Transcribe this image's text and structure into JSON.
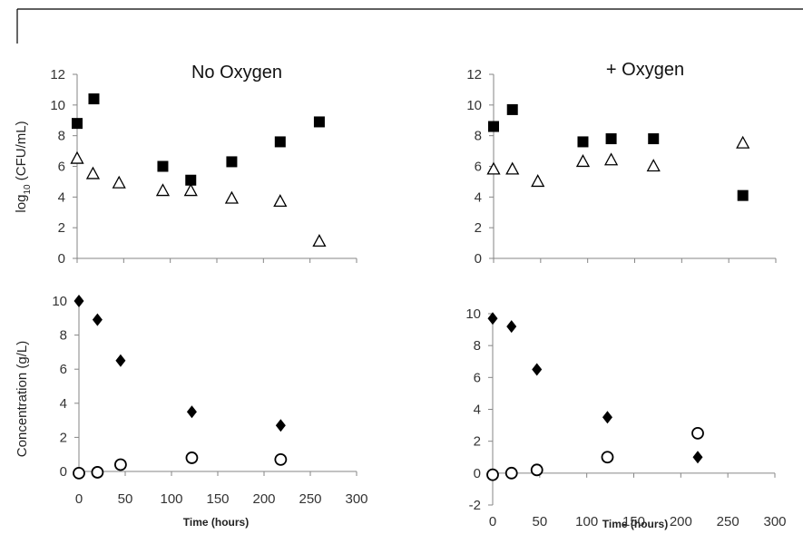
{
  "chart_data": [
    {
      "id": "top-left",
      "type": "scatter",
      "title": "No Oxygen",
      "ylabel_main": "log",
      "ylabel_sub": "10",
      "ylabel_rest": " (CFU/mL)",
      "xlabel": "",
      "xlim": [
        0,
        300
      ],
      "ylim": [
        0,
        12
      ],
      "xticks": [
        0,
        50,
        100,
        150,
        200,
        250,
        300
      ],
      "yticks": [
        0,
        2,
        4,
        6,
        8,
        10,
        12
      ],
      "show_xtick_labels": false,
      "series": [
        {
          "marker": "square",
          "points": [
            [
              0,
              8.8
            ],
            [
              18,
              10.4
            ],
            [
              92,
              6.0
            ],
            [
              122,
              5.1
            ],
            [
              166,
              6.3
            ],
            [
              218,
              7.6
            ],
            [
              260,
              8.9
            ]
          ]
        },
        {
          "marker": "triangle",
          "points": [
            [
              0,
              6.5
            ],
            [
              17,
              5.5
            ],
            [
              45,
              4.9
            ],
            [
              92,
              4.4
            ],
            [
              122,
              4.4
            ],
            [
              166,
              3.9
            ],
            [
              218,
              3.7
            ],
            [
              260,
              1.1
            ]
          ]
        }
      ]
    },
    {
      "id": "top-right",
      "type": "scatter",
      "title": "+ Oxygen",
      "xlabel": "",
      "xlim": [
        0,
        300
      ],
      "ylim": [
        0,
        12
      ],
      "xticks": [
        0,
        50,
        100,
        150,
        200,
        250,
        300
      ],
      "yticks": [
        0,
        2,
        4,
        6,
        8,
        10,
        12
      ],
      "show_xtick_labels": false,
      "series": [
        {
          "marker": "square",
          "points": [
            [
              0,
              8.6
            ],
            [
              20,
              9.7
            ],
            [
              95,
              7.6
            ],
            [
              125,
              7.8
            ],
            [
              170,
              7.8
            ],
            [
              265,
              4.1
            ]
          ]
        },
        {
          "marker": "triangle",
          "points": [
            [
              0,
              5.8
            ],
            [
              20,
              5.8
            ],
            [
              47,
              5.0
            ],
            [
              95,
              6.3
            ],
            [
              125,
              6.4
            ],
            [
              170,
              6.0
            ],
            [
              265,
              7.5
            ]
          ]
        }
      ]
    },
    {
      "id": "bottom-left",
      "type": "scatter",
      "title": "",
      "ylabel": "Concentration (g/L)",
      "xlabel": "Time (hours)",
      "xlim": [
        0,
        300
      ],
      "ylim": [
        0,
        10
      ],
      "xticks": [
        0,
        50,
        100,
        150,
        200,
        250,
        300
      ],
      "yticks": [
        0,
        2,
        4,
        6,
        8,
        10
      ],
      "show_xtick_labels": true,
      "series": [
        {
          "marker": "diamond",
          "points": [
            [
              0,
              10.0
            ],
            [
              20,
              8.9
            ],
            [
              45,
              6.5
            ],
            [
              122,
              3.5
            ],
            [
              218,
              2.7
            ]
          ]
        },
        {
          "marker": "circle",
          "points": [
            [
              0,
              -0.1
            ],
            [
              20,
              -0.05
            ],
            [
              45,
              0.4
            ],
            [
              122,
              0.8
            ],
            [
              218,
              0.7
            ]
          ]
        }
      ]
    },
    {
      "id": "bottom-right",
      "type": "scatter",
      "title": "",
      "xlabel": "Time (hours)",
      "xlim": [
        0,
        300
      ],
      "ylim": [
        -2,
        10
      ],
      "xticks": [
        0,
        50,
        100,
        150,
        200,
        250,
        300
      ],
      "yticks": [
        -2,
        0,
        2,
        4,
        6,
        8,
        10
      ],
      "show_xtick_labels": true,
      "series": [
        {
          "marker": "diamond",
          "points": [
            [
              0,
              9.7
            ],
            [
              20,
              9.2
            ],
            [
              47,
              6.5
            ],
            [
              122,
              3.5
            ],
            [
              218,
              1.0
            ]
          ]
        },
        {
          "marker": "circle",
          "points": [
            [
              0,
              -0.1
            ],
            [
              20,
              0.0
            ],
            [
              47,
              0.2
            ],
            [
              122,
              1.0
            ],
            [
              218,
              2.5
            ]
          ]
        }
      ]
    }
  ]
}
